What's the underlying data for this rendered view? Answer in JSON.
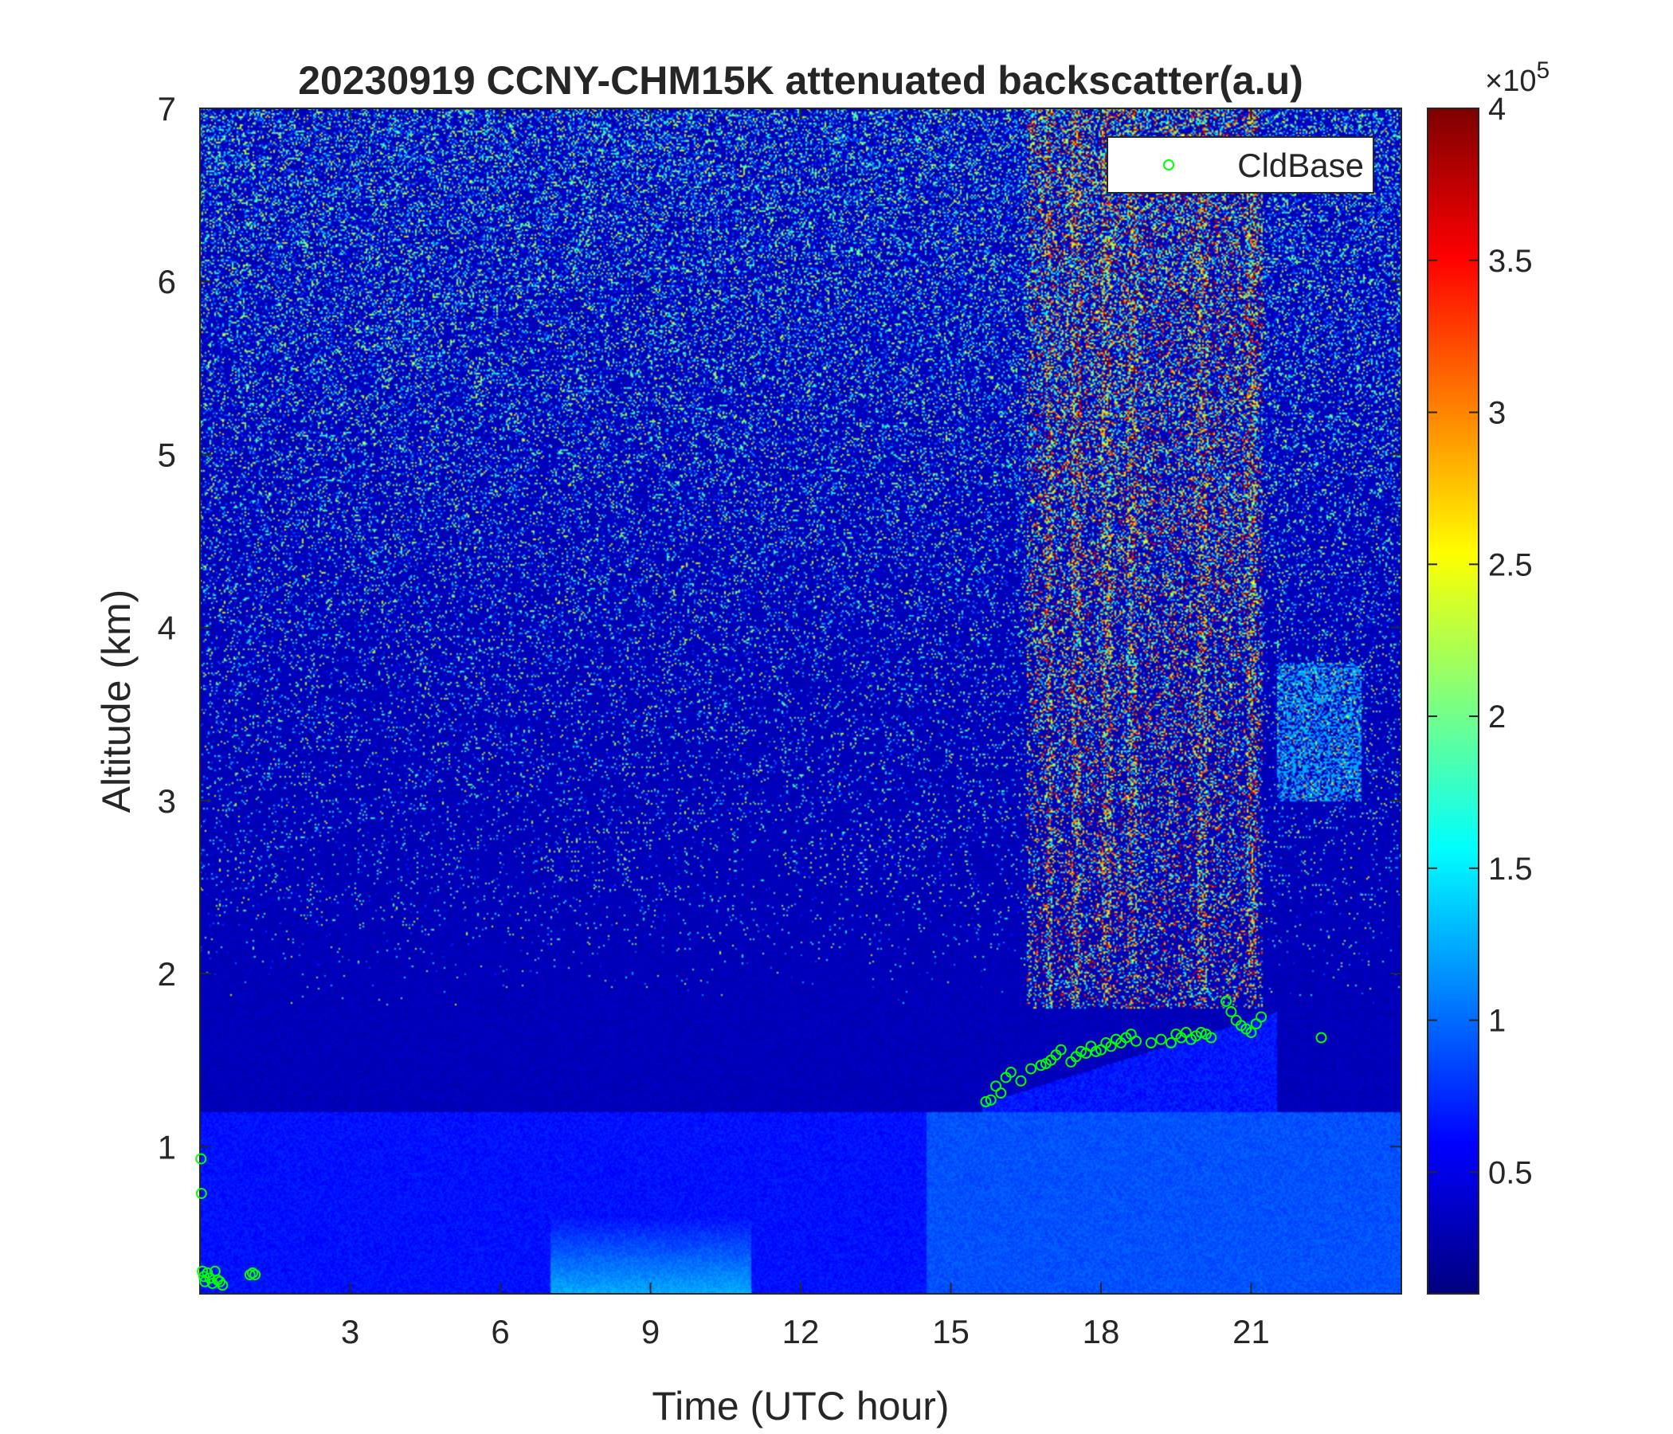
{
  "chart_data": {
    "type": "heatmap",
    "title": "20230919 CCNY-CHM15K attenuated backscatter(a.u)",
    "xlabel": "Time (UTC hour)",
    "ylabel": "Altitude (km)",
    "xlim": [
      0,
      24
    ],
    "ylim": [
      0.15,
      7
    ],
    "xticks": [
      3,
      6,
      9,
      12,
      15,
      18,
      21
    ],
    "yticks": [
      1,
      2,
      3,
      4,
      5,
      6,
      7
    ],
    "colorbar": {
      "colormap": "jet",
      "clim": [
        0.1,
        4
      ],
      "ticks": [
        0.5,
        1,
        1.5,
        2,
        2.5,
        3,
        3.5,
        4
      ],
      "tick_labels": [
        "0.5",
        "1",
        "1.5",
        "2",
        "2.5",
        "3",
        "3.5",
        "4"
      ],
      "exponent_prefix": "×10",
      "exponent": "5"
    },
    "legend": {
      "location": "top-right",
      "entries": [
        "CldBase"
      ]
    },
    "series": [
      {
        "name": "CldBase",
        "marker": "circle",
        "color": "#00ff00",
        "x": [
          0.02,
          0.03,
          0.05,
          0.08,
          0.1,
          0.15,
          0.2,
          0.25,
          0.3,
          0.35,
          0.4,
          0.45,
          1.0,
          1.05,
          1.1,
          15.7,
          15.8,
          15.9,
          16.0,
          16.1,
          16.2,
          16.4,
          16.6,
          16.8,
          16.9,
          17.0,
          17.1,
          17.2,
          17.4,
          17.5,
          17.6,
          17.7,
          17.8,
          17.9,
          18.0,
          18.1,
          18.2,
          18.3,
          18.4,
          18.5,
          18.6,
          18.7,
          19.0,
          19.2,
          19.4,
          19.5,
          19.6,
          19.7,
          19.8,
          19.9,
          20.0,
          20.1,
          20.2,
          20.5,
          20.6,
          20.7,
          20.8,
          20.9,
          21.0,
          21.1,
          21.2,
          22.4
        ],
        "y": [
          0.93,
          0.73,
          0.28,
          0.25,
          0.22,
          0.27,
          0.24,
          0.21,
          0.28,
          0.23,
          0.22,
          0.2,
          0.26,
          0.27,
          0.26,
          1.26,
          1.27,
          1.35,
          1.31,
          1.4,
          1.43,
          1.38,
          1.45,
          1.47,
          1.48,
          1.5,
          1.53,
          1.56,
          1.49,
          1.52,
          1.55,
          1.54,
          1.58,
          1.55,
          1.56,
          1.6,
          1.58,
          1.62,
          1.6,
          1.63,
          1.65,
          1.61,
          1.6,
          1.62,
          1.6,
          1.65,
          1.63,
          1.66,
          1.62,
          1.64,
          1.66,
          1.65,
          1.63,
          1.84,
          1.78,
          1.73,
          1.7,
          1.68,
          1.66,
          1.71,
          1.75,
          1.63
        ]
      }
    ]
  }
}
